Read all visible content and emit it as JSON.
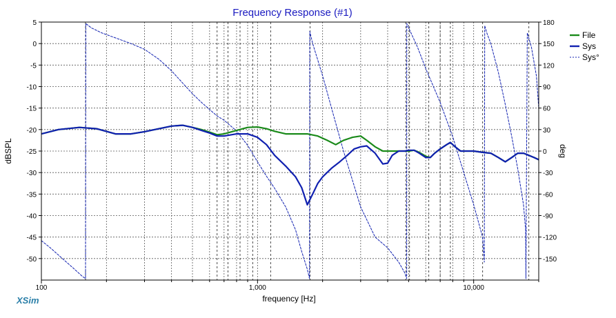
{
  "chart_data": {
    "type": "line",
    "title": "Frequency Response (#1)",
    "xlabel": "frequency [Hz]",
    "ylabel": "dBSPL",
    "y2label": "deg",
    "xscale": "log",
    "xlim": [
      100,
      20000
    ],
    "ylim": [
      -55,
      5
    ],
    "y2lim": [
      -180,
      180
    ],
    "grid": true,
    "legend_position": "top-right",
    "watermark": "XSim",
    "x_tick_labels": [
      {
        "value": 100,
        "label": "100"
      },
      {
        "value": 1000,
        "label": "1,000"
      },
      {
        "value": 10000,
        "label": "10,000"
      }
    ],
    "x_minor_ticks": [
      200,
      300,
      400,
      500,
      600,
      700,
      800,
      900,
      2000,
      3000,
      4000,
      5000,
      6000,
      7000,
      8000,
      9000,
      20000
    ],
    "x_extra_dashed_gridlines": [
      160,
      650,
      730,
      830,
      950,
      1150,
      1750,
      4850,
      5050,
      6200,
      7000,
      7800,
      11000,
      18000
    ],
    "y_ticks": [
      5,
      0,
      -5,
      -10,
      -15,
      -20,
      -25,
      -30,
      -35,
      -40,
      -45,
      -50
    ],
    "y2_ticks": [
      180,
      150,
      120,
      90,
      60,
      30,
      0,
      -30,
      -60,
      -90,
      -120,
      -150
    ],
    "series": [
      {
        "name": "File",
        "axis": "left",
        "color": "#1a8a1a",
        "style": "solid-thick",
        "x": [
          100,
          120,
          150,
          180,
          220,
          260,
          300,
          350,
          400,
          450,
          500,
          550,
          600,
          650,
          700,
          800,
          900,
          1000,
          1100,
          1200,
          1350,
          1500,
          1700,
          1900,
          2100,
          2300,
          2500,
          2750,
          3000,
          3200,
          3500,
          3800,
          4100,
          4400,
          4700,
          5000,
          5300,
          5600,
          6000,
          6300,
          6600,
          7000,
          7500,
          7800,
          8200,
          8700,
          9200,
          10000,
          11000,
          12000,
          13000,
          14000,
          15000,
          16000,
          17000,
          18000,
          19000,
          20000
        ],
        "y": [
          -21,
          -20,
          -19.5,
          -19.8,
          -21,
          -21,
          -20.5,
          -19.8,
          -19.2,
          -19,
          -19.5,
          -20,
          -20.6,
          -21.2,
          -21,
          -20.2,
          -19.5,
          -19.4,
          -19.8,
          -20.4,
          -21,
          -21,
          -21,
          -21.5,
          -22.5,
          -23.5,
          -22.5,
          -21.8,
          -21.5,
          -22.5,
          -24,
          -25,
          -25,
          -25,
          -25,
          -25,
          -24.8,
          -25.3,
          -26.2,
          -26.5,
          -25.5,
          -24.5,
          -23.5,
          -23,
          -24,
          -25,
          -25,
          -25,
          -25.3,
          -25.5,
          -26.5,
          -27.5,
          -26.5,
          -25.5,
          -25.5,
          -26,
          -26.5,
          -27
        ]
      },
      {
        "name": "Sys",
        "axis": "left",
        "color": "#1020b0",
        "style": "solid-thick",
        "x": [
          100,
          120,
          150,
          180,
          220,
          260,
          300,
          350,
          400,
          450,
          500,
          550,
          600,
          650,
          700,
          800,
          900,
          1000,
          1100,
          1200,
          1350,
          1500,
          1600,
          1700,
          1800,
          1900,
          2000,
          2200,
          2400,
          2600,
          2800,
          3000,
          3200,
          3500,
          3800,
          4000,
          4200,
          4500,
          4800,
          5000,
          5300,
          5600,
          6000,
          6300,
          6600,
          7000,
          7500,
          7800,
          8200,
          8700,
          9200,
          10000,
          11000,
          12000,
          13000,
          14000,
          15000,
          16000,
          17000,
          18000,
          19000,
          20000
        ],
        "y": [
          -21,
          -20,
          -19.5,
          -19.8,
          -21,
          -21,
          -20.5,
          -19.8,
          -19.2,
          -19,
          -19.5,
          -20.2,
          -20.8,
          -21.5,
          -21.5,
          -21,
          -21,
          -21.8,
          -23.5,
          -26,
          -28.5,
          -31,
          -33.5,
          -37.5,
          -35,
          -32.5,
          -31,
          -29,
          -27.5,
          -26,
          -24.5,
          -24,
          -23.8,
          -25.5,
          -28,
          -27.8,
          -26,
          -25,
          -25,
          -24.8,
          -24.8,
          -25.5,
          -26.5,
          -26.5,
          -25.5,
          -24.5,
          -23.5,
          -23,
          -24,
          -25,
          -25,
          -25,
          -25.3,
          -25.5,
          -26.5,
          -27.5,
          -26.5,
          -25.5,
          -25.5,
          -26,
          -26.5,
          -27
        ]
      },
      {
        "name": "Sys°",
        "axis": "right",
        "color": "#1020b0",
        "style": "dashed",
        "x": [
          100,
          110,
          125,
          140,
          155,
          160,
          160.5,
          170,
          190,
          220,
          260,
          300,
          350,
          400,
          450,
          500,
          550,
          600,
          650,
          700,
          800,
          900,
          1000,
          1100,
          1200,
          1350,
          1500,
          1600,
          1700,
          1740,
          1745,
          1760,
          1800,
          2000,
          2200,
          2500,
          3000,
          3500,
          4000,
          4500,
          4800,
          4900,
          4905,
          5000,
          5500,
          6000,
          7000,
          8000,
          9000,
          10000,
          11000,
          11200,
          11250,
          11500,
          12000,
          13000,
          14000,
          15000,
          16000,
          17000,
          17400,
          17450,
          17700,
          18500,
          19500,
          20000
        ],
        "y": [
          -125,
          -135,
          -150,
          -163,
          -175,
          -178,
          178,
          172,
          165,
          158,
          150,
          142,
          128,
          112,
          95,
          80,
          68,
          58,
          49,
          43,
          28,
          8,
          -15,
          -35,
          -52,
          -78,
          -110,
          -140,
          -165,
          -178,
          167,
          162,
          150,
          105,
          60,
          0,
          -78,
          -120,
          -135,
          -155,
          -170,
          -178,
          178,
          172,
          145,
          115,
          68,
          20,
          -30,
          -75,
          -120,
          -155,
          175,
          165,
          150,
          110,
          65,
          20,
          -25,
          -75,
          -110,
          -178,
          165,
          145,
          105,
          60
        ]
      }
    ]
  }
}
